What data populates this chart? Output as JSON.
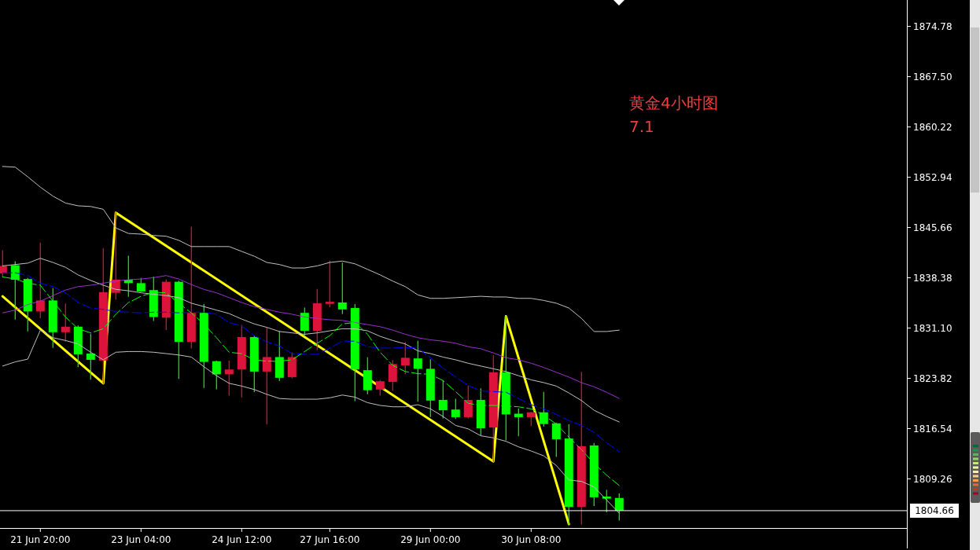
{
  "chart_data": {
    "type": "candlestick",
    "categories": [
      null,
      null,
      null,
      "21 Jun 20:00",
      null,
      null,
      null,
      null,
      null,
      null,
      null,
      "23 Jun 04:00",
      null,
      null,
      null,
      null,
      null,
      null,
      null,
      "24 Jun 12:00",
      null,
      null,
      null,
      null,
      null,
      null,
      "27 Jun 16:00",
      null,
      null,
      null,
      null,
      null,
      null,
      null,
      "29 Jun 00:00",
      null,
      null,
      null,
      null,
      null,
      null,
      null,
      "30 Jun 08:00",
      null,
      null,
      null,
      null,
      null,
      null,
      null
    ],
    "annotations": [
      "黄金4小时图",
      "7.1"
    ],
    "ylim": [
      1802.15,
      1878.6
    ],
    "yticks": [
      1874.78,
      {
        "value": 1867.5,
        "label": "1867.50"
      },
      1860.22,
      1852.94,
      1845.66,
      1838.38,
      {
        "value": 1831.1,
        "label": "1831.10"
      },
      1823.82,
      1816.54,
      1809.26
    ],
    "ref_lines": [
      {
        "axis": "y",
        "value": 1804.66,
        "label": "1804.66",
        "color": "#ffffff"
      }
    ],
    "grid": false,
    "series": [
      {
        "type": "line",
        "color": "#c0c0c0",
        "values": [
          1854.5,
          1854.4,
          1853.0,
          1851.5,
          1850.2,
          1849.2,
          1848.8,
          1848.7,
          1848.3,
          1845.6,
          1844.8,
          1844.7,
          1844.5,
          1844.4,
          1843.8,
          1842.9,
          1842.9,
          1842.9,
          1842.9,
          1842.2,
          1841.5,
          1840.6,
          1840.3,
          1839.8,
          1839.8,
          1840.1,
          1840.6,
          1840.8,
          1840.4,
          1839.6,
          1838.8,
          1837.9,
          1837.1,
          1835.9,
          1835.4,
          1835.4,
          1835.5,
          1835.6,
          1835.7,
          1835.6,
          1835.6,
          1835.4,
          1835.4,
          1835.1,
          1834.7,
          1834.0,
          1832.5,
          1830.6,
          1830.6,
          1830.8
        ]
      },
      {
        "type": "line",
        "color": "#c0c0c0",
        "values": [
          1840.1,
          1840.3,
          1840.5,
          1841.2,
          1840.6,
          1839.9,
          1838.8,
          1838.0,
          1837.3,
          1836.7,
          1836.5,
          1836.2,
          1836.0,
          1835.8,
          1835.5,
          1834.7,
          1834.2,
          1833.7,
          1833.2,
          1832.4,
          1831.7,
          1831.2,
          1830.6,
          1830.4,
          1830.2,
          1830.4,
          1830.7,
          1831.0,
          1831.0,
          1830.7,
          1829.9,
          1829.3,
          1828.8,
          1827.8,
          1827.4,
          1826.9,
          1826.5,
          1826.0,
          1825.6,
          1825.2,
          1824.8,
          1824.2,
          1823.6,
          1823.2,
          1822.7,
          1821.7,
          1820.6,
          1819.2,
          1818.3,
          1817.5
        ]
      },
      {
        "type": "line",
        "color": "#c0c0c0",
        "values": [
          1825.6,
          1826.2,
          1826.6,
          1830.8,
          1829.7,
          1829.3,
          1828.8,
          1827.6,
          1826.5,
          1827.6,
          1827.7,
          1827.7,
          1827.6,
          1827.4,
          1827.2,
          1826.9,
          1825.5,
          1824.2,
          1823.1,
          1822.7,
          1822.2,
          1821.5,
          1820.9,
          1820.8,
          1820.8,
          1820.8,
          1821.0,
          1821.4,
          1821.1,
          1820.3,
          1819.9,
          1819.7,
          1819.7,
          1820.0,
          1819.4,
          1818.3,
          1817.0,
          1816.5,
          1815.5,
          1815.2,
          1814.7,
          1813.9,
          1813.3,
          1812.6,
          1811.2,
          1809.1,
          1808.9,
          1808.1,
          1806.2,
          1804.3
        ]
      },
      {
        "type": "line",
        "color": "#9932cc",
        "values": [
          1833.3,
          1833.7,
          1834.5,
          1835.0,
          1835.8,
          1836.6,
          1837.1,
          1837.3,
          1837.6,
          1837.9,
          1838.1,
          1838.2,
          1838.4,
          1838.7,
          1838.2,
          1837.4,
          1836.7,
          1836.2,
          1835.5,
          1834.8,
          1834.2,
          1833.8,
          1833.4,
          1833.1,
          1832.7,
          1832.5,
          1832.3,
          1832.2,
          1831.9,
          1831.6,
          1831.3,
          1830.8,
          1830.2,
          1829.7,
          1829.4,
          1829.2,
          1828.9,
          1828.4,
          1828.1,
          1827.5,
          1826.8,
          1826.5,
          1826.0,
          1825.4,
          1824.7,
          1824.0,
          1823.2,
          1822.6,
          1821.8,
          1820.9
        ]
      },
      {
        "type": "line",
        "color": "#0000ff",
        "line_style": "dashed",
        "values": [
          1839.1,
          1839.1,
          1838.7,
          1837.6,
          1837.1,
          1836.2,
          1834.8,
          1834.0,
          1833.8,
          1833.5,
          1833.4,
          1833.3,
          1833.4,
          1833.4,
          1833.3,
          1833.4,
          1833.4,
          1833.1,
          1831.9,
          1831.4,
          1830.0,
          1829.1,
          1828.5,
          1827.4,
          1827.3,
          1827.3,
          1828.2,
          1829.2,
          1829.2,
          1828.4,
          1828.2,
          1828.2,
          1828.3,
          1828.2,
          1826.8,
          1825.3,
          1824.0,
          1822.8,
          1822.0,
          1821.9,
          1821.8,
          1820.9,
          1820.0,
          1819.4,
          1818.6,
          1817.7,
          1817.0,
          1816.0,
          1814.5,
          1813.2
        ]
      },
      {
        "type": "line",
        "color": "#00ff00",
        "line_style": "dashed",
        "values": [
          1838.5,
          1838.2,
          1837.6,
          1837.3,
          1835.0,
          1832.7,
          1831.0,
          1830.4,
          1831.0,
          1833.1,
          1834.8,
          1835.7,
          1836.3,
          1836.2,
          1834.7,
          1833.3,
          1831.7,
          1829.7,
          1827.6,
          1827.4,
          1826.5,
          1826.3,
          1826.3,
          1826.5,
          1827.7,
          1828.9,
          1830.0,
          1831.7,
          1831.9,
          1830.2,
          1827.6,
          1825.7,
          1824.8,
          1824.5,
          1824.4,
          1823.5,
          1821.9,
          1820.2,
          1819.9,
          1819.9,
          1819.8,
          1819.7,
          1819.4,
          1818.5,
          1817.2,
          1815.3,
          1813.5,
          1811.5,
          1809.8,
          1808.3
        ]
      },
      {
        "type": "line",
        "color": "#ffff00",
        "values": [
          1835.7,
          null,
          null,
          null,
          null,
          null,
          null,
          null,
          1823.1,
          1847.8,
          null,
          null,
          null,
          null,
          null,
          null,
          null,
          null,
          null,
          null,
          null,
          null,
          null,
          null,
          null,
          null,
          null,
          null,
          null,
          null,
          null,
          null,
          null,
          null,
          null,
          null,
          null,
          null,
          null,
          1811.8,
          1832.8,
          null,
          null,
          null,
          null,
          1802.7,
          null,
          null,
          null,
          null
        ]
      },
      {
        "type": "candlestick",
        "ohlc": [
          [
            1839.0,
            1842.3,
            1838.5,
            1840.1
          ],
          [
            1840.2,
            1840.7,
            1832.4,
            1838.1
          ],
          [
            1838.2,
            1838.3,
            1830.7,
            1833.5
          ],
          [
            1833.5,
            1843.4,
            1832.6,
            1835.1
          ],
          [
            1835.1,
            1836.8,
            1828.3,
            1830.5
          ],
          [
            1830.5,
            1834.6,
            1829.2,
            1831.3
          ],
          [
            1831.3,
            1831.4,
            1825.5,
            1827.3
          ],
          [
            1827.4,
            1830.2,
            1823.7,
            1826.5
          ],
          [
            1826.4,
            1842.6,
            1823.1,
            1836.3
          ],
          [
            1836.2,
            1847.8,
            1835.3,
            1838.1
          ],
          [
            1838.1,
            1841.5,
            1835.7,
            1837.6
          ],
          [
            1837.6,
            1838.3,
            1836.4,
            1836.4
          ],
          [
            1836.6,
            1838.5,
            1832.2,
            1832.7
          ],
          [
            1832.6,
            1838.1,
            1830.9,
            1837.8
          ],
          [
            1837.8,
            1837.9,
            1823.8,
            1829.1
          ],
          [
            1829.1,
            1845.7,
            1828.2,
            1833.3
          ],
          [
            1833.3,
            1834.5,
            1822.5,
            1826.2
          ],
          [
            1826.3,
            1826.3,
            1822.3,
            1824.4
          ],
          [
            1824.4,
            1826.3,
            1821.4,
            1825.1
          ],
          [
            1825.1,
            1831.5,
            1821.1,
            1829.8
          ],
          [
            1829.8,
            1829.9,
            1821.9,
            1824.8
          ],
          [
            1824.8,
            1831.1,
            1817.2,
            1826.9
          ],
          [
            1826.9,
            1830.6,
            1823.5,
            1823.9
          ],
          [
            1824.0,
            1827.5,
            1823.9,
            1826.9
          ],
          [
            1833.3,
            1834.0,
            1830.0,
            1830.7
          ],
          [
            1830.7,
            1836.7,
            1828.0,
            1834.7
          ],
          [
            1834.6,
            1840.8,
            1834.2,
            1834.9
          ],
          [
            1834.8,
            1840.5,
            1833.2,
            1833.8
          ],
          [
            1834.0,
            1834.5,
            1820.6,
            1825.1
          ],
          [
            1825.0,
            1826.8,
            1821.6,
            1822.1
          ],
          [
            1822.2,
            1823.5,
            1821.4,
            1823.4
          ],
          [
            1823.3,
            1826.4,
            1822.1,
            1825.9
          ],
          [
            1825.7,
            1829.0,
            1824.5,
            1826.8
          ],
          [
            1826.7,
            1829.2,
            1820.5,
            1825.2
          ],
          [
            1825.2,
            1826.5,
            1818.3,
            1820.6
          ],
          [
            1820.7,
            1823.5,
            1818.1,
            1819.2
          ],
          [
            1819.3,
            1820.8,
            1818.0,
            1818.2
          ],
          [
            1818.2,
            1822.7,
            1818.1,
            1820.7
          ],
          [
            1820.7,
            1822.3,
            1815.6,
            1816.6
          ],
          [
            1816.7,
            1827.1,
            1811.8,
            1824.7
          ],
          [
            1824.7,
            1832.8,
            1814.9,
            1818.6
          ],
          [
            1818.7,
            1819.4,
            1815.5,
            1818.2
          ],
          [
            1818.2,
            1818.9,
            1817.0,
            1818.9
          ],
          [
            1818.9,
            1821.8,
            1816.9,
            1817.2
          ],
          [
            1817.3,
            1817.3,
            1812.5,
            1815.0
          ],
          [
            1815.1,
            1817.1,
            1802.7,
            1805.2
          ],
          [
            1805.2,
            1824.7,
            1802.7,
            1814.0
          ],
          [
            1814.1,
            1814.4,
            1805.4,
            1806.6
          ],
          [
            1806.7,
            1807.6,
            1804.5,
            1806.4
          ],
          [
            1806.5,
            1807.1,
            1803.3,
            1804.66
          ]
        ],
        "colors": [
          "#dc143c",
          "#00ff00",
          "#00ff00",
          "#dc143c",
          "#00ff00",
          "#dc143c",
          "#00ff00",
          "#00ff00",
          "#dc143c",
          "#dc143c",
          "#00ff00",
          "#00ff00",
          "#00ff00",
          "#dc143c",
          "#00ff00",
          "#dc143c",
          "#00ff00",
          "#00ff00",
          "#dc143c",
          "#dc143c",
          "#00ff00",
          "#dc143c",
          "#00ff00",
          "#dc143c",
          "#00ff00",
          "#dc143c",
          "#dc143c",
          "#00ff00",
          "#00ff00",
          "#00ff00",
          "#dc143c",
          "#dc143c",
          "#dc143c",
          "#00ff00",
          "#00ff00",
          "#00ff00",
          "#00ff00",
          "#dc143c",
          "#00ff00",
          "#dc143c",
          "#00ff00",
          "#00ff00",
          "#dc143c",
          "#00ff00",
          "#00ff00",
          "#00ff00",
          "#dc143c",
          "#00ff00",
          "#00ff00",
          "#00ff00"
        ]
      }
    ]
  }
}
